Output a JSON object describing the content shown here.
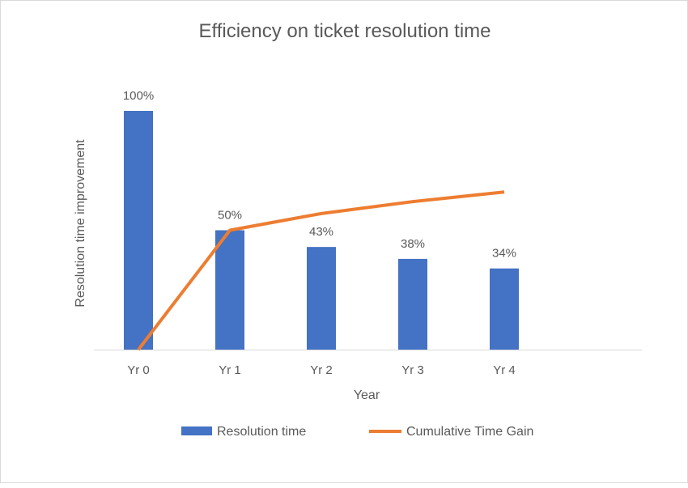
{
  "chart_data": {
    "type": "bar+line",
    "title": "Efficiency on ticket resolution time",
    "xlabel": "Year",
    "ylabel": "Resolution time improvement",
    "categories": [
      "Yr 0",
      "Yr 1",
      "Yr 2",
      "Yr 3",
      "Yr 4"
    ],
    "series": [
      {
        "name": "Resolution time",
        "type": "bar",
        "color": "#4472c4",
        "values": [
          100,
          50,
          43,
          38,
          34
        ],
        "data_labels": [
          "100%",
          "50%",
          "43%",
          "38%",
          "34%"
        ]
      },
      {
        "name": "Cumulative Time Gain",
        "type": "line",
        "color": "#ed7d31",
        "values": [
          0,
          50,
          57,
          62,
          66
        ]
      }
    ],
    "ylim": [
      0,
      100
    ],
    "grid": false,
    "legend": "bottom"
  }
}
